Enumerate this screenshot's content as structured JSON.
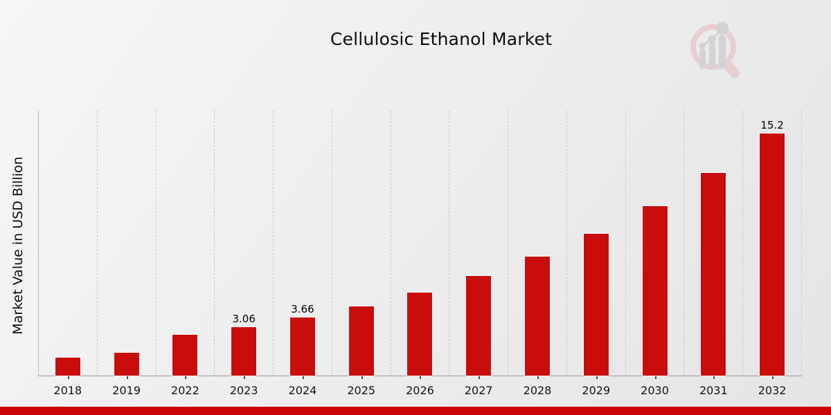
{
  "title": "Cellulosic Ethanol Market",
  "y_axis_label": "Market Value in USD Billion",
  "watermark": {
    "icon": "magnifier-bar-chart-logo"
  },
  "colors": {
    "bar": "#c90d0d",
    "bottom_strip": "#cb0505",
    "grid": "#c8c8c8",
    "axis": "#9a9a9a",
    "text": "#0d0d0d",
    "logo_pink": "#e8cdce",
    "logo_gray": "#d2d2d5"
  },
  "chart_data": {
    "type": "bar",
    "title": "Cellulosic Ethanol Market",
    "xlabel": "",
    "ylabel": "Market Value in USD Billion",
    "categories": [
      "2018",
      "2019",
      "2022",
      "2023",
      "2024",
      "2025",
      "2026",
      "2027",
      "2028",
      "2029",
      "2030",
      "2031",
      "2032"
    ],
    "values": [
      1.13,
      1.45,
      2.55,
      3.06,
      3.66,
      4.37,
      5.23,
      6.25,
      7.46,
      8.92,
      10.66,
      12.74,
      15.2
    ],
    "data_labels": [
      "",
      "",
      "",
      "3.06",
      "3.66",
      "",
      "",
      "",
      "",
      "",
      "",
      "",
      "15.2"
    ],
    "ylim": [
      0,
      16.7
    ],
    "grid": "vertical-dashed",
    "legend": "none",
    "bar_color": "#c90d0d"
  }
}
